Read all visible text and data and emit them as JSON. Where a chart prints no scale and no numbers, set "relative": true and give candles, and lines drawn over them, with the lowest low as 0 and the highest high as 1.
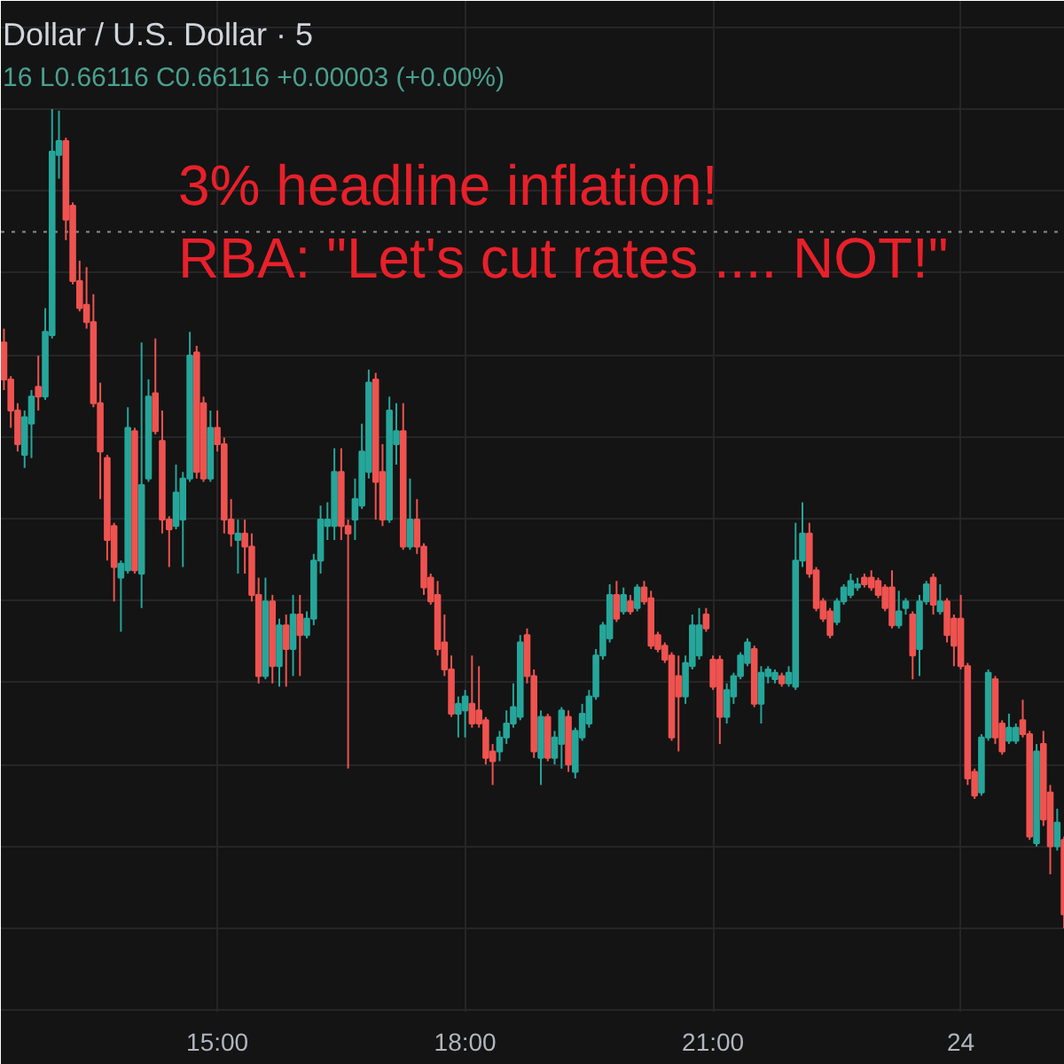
{
  "chart_data": {
    "type": "candlestick",
    "title": "Dollar / U.S. Dollar · 5",
    "subtitle": "16 L0.66116 C0.66116 +0.00003 (+0.00%)",
    "annotations": [
      "3% headline inflation!",
      "RBA: \"Let's cut rates .... NOT!\""
    ],
    "relative": true,
    "grid": true,
    "xlim": [
      12.38,
      25.26
    ],
    "xticks": [
      {
        "value": 15,
        "label": "15:00"
      },
      {
        "value": 18,
        "label": "18:00"
      },
      {
        "value": 21,
        "label": "21:00"
      },
      {
        "value": 24,
        "label": "24"
      }
    ],
    "ref_lines": [
      {
        "axis": "y",
        "value": 0.85,
        "line_style": "dotted",
        "color": "#8a8d94"
      }
    ],
    "x": [
      12.417,
      12.5,
      12.583,
      12.667,
      12.75,
      12.833,
      12.917,
      13,
      13.083,
      13.167,
      13.25,
      13.333,
      13.417,
      13.5,
      13.583,
      13.667,
      13.75,
      13.833,
      13.917,
      14,
      14.083,
      14.167,
      14.25,
      14.333,
      14.417,
      14.5,
      14.583,
      14.667,
      14.75,
      14.833,
      14.917,
      15,
      15.083,
      15.167,
      15.25,
      15.333,
      15.417,
      15.5,
      15.583,
      15.667,
      15.75,
      15.833,
      15.917,
      16,
      16.083,
      16.167,
      16.25,
      16.333,
      16.417,
      16.5,
      16.583,
      16.667,
      16.75,
      16.833,
      16.917,
      17,
      17.083,
      17.167,
      17.25,
      17.333,
      17.417,
      17.5,
      17.583,
      17.667,
      17.75,
      17.833,
      17.917,
      18,
      18.083,
      18.167,
      18.25,
      18.333,
      18.417,
      18.5,
      18.583,
      18.667,
      18.75,
      18.833,
      18.917,
      19,
      19.083,
      19.167,
      19.25,
      19.333,
      19.417,
      19.5,
      19.583,
      19.667,
      19.75,
      19.833,
      19.917,
      20,
      20.083,
      20.167,
      20.25,
      20.333,
      20.417,
      20.5,
      20.583,
      20.667,
      20.75,
      20.833,
      20.917,
      21,
      21.083,
      21.167,
      21.25,
      21.333,
      21.417,
      21.5,
      21.583,
      21.667,
      21.75,
      21.833,
      21.917,
      22,
      22.083,
      22.167,
      22.25,
      22.333,
      22.417,
      22.5,
      22.583,
      22.667,
      22.75,
      22.833,
      22.917,
      23,
      23.083,
      23.167,
      23.25,
      23.333,
      23.417,
      23.5,
      23.583,
      23.667,
      23.75,
      23.833,
      23.917,
      24,
      24.083,
      24.167,
      24.25,
      24.333,
      24.417,
      24.5,
      24.583,
      24.667,
      24.75,
      24.833,
      24.917,
      25,
      25.083,
      25.167,
      25.25
    ],
    "ohlc": [
      [
        0.715,
        0.732,
        0.657,
        0.67
      ],
      [
        0.67,
        0.674,
        0.611,
        0.632
      ],
      [
        0.632,
        0.641,
        0.582,
        0.591
      ],
      [
        0.578,
        0.632,
        0.562,
        0.624
      ],
      [
        0.616,
        0.657,
        0.574,
        0.649
      ],
      [
        0.661,
        0.699,
        0.632,
        0.649
      ],
      [
        0.649,
        0.757,
        0.645,
        0.728
      ],
      [
        0.724,
        1.0,
        0.72,
        0.948
      ],
      [
        0.944,
        0.998,
        0.915,
        0.961
      ],
      [
        0.961,
        0.965,
        0.84,
        0.865
      ],
      [
        0.882,
        0.886,
        0.786,
        0.79
      ],
      [
        0.79,
        0.815,
        0.753,
        0.757
      ],
      [
        0.761,
        0.807,
        0.732,
        0.74
      ],
      [
        0.74,
        0.774,
        0.636,
        0.641
      ],
      [
        0.641,
        0.666,
        0.524,
        0.582
      ],
      [
        0.574,
        0.578,
        0.449,
        0.474
      ],
      [
        0.491,
        0.495,
        0.399,
        0.441
      ],
      [
        0.428,
        0.449,
        0.362,
        0.445
      ],
      [
        0.437,
        0.636,
        0.433,
        0.611
      ],
      [
        0.607,
        0.611,
        0.433,
        0.437
      ],
      [
        0.433,
        0.715,
        0.391,
        0.541
      ],
      [
        0.549,
        0.67,
        0.545,
        0.649
      ],
      [
        0.653,
        0.72,
        0.603,
        0.607
      ],
      [
        0.595,
        0.632,
        0.482,
        0.499
      ],
      [
        0.499,
        0.503,
        0.441,
        0.487
      ],
      [
        0.491,
        0.566,
        0.487,
        0.532
      ],
      [
        0.499,
        0.557,
        0.441,
        0.549
      ],
      [
        0.549,
        0.728,
        0.545,
        0.699
      ],
      [
        0.703,
        0.711,
        0.549,
        0.557
      ],
      [
        0.641,
        0.649,
        0.545,
        0.549
      ],
      [
        0.549,
        0.632,
        0.545,
        0.611
      ],
      [
        0.611,
        0.632,
        0.582,
        0.591
      ],
      [
        0.591,
        0.599,
        0.482,
        0.499
      ],
      [
        0.499,
        0.524,
        0.466,
        0.482
      ],
      [
        0.474,
        0.499,
        0.433,
        0.482
      ],
      [
        0.482,
        0.499,
        0.433,
        0.466
      ],
      [
        0.466,
        0.482,
        0.399,
        0.407
      ],
      [
        0.407,
        0.428,
        0.299,
        0.308
      ],
      [
        0.308,
        0.428,
        0.304,
        0.399
      ],
      [
        0.399,
        0.407,
        0.299,
        0.32
      ],
      [
        0.32,
        0.378,
        0.295,
        0.37
      ],
      [
        0.37,
        0.383,
        0.295,
        0.341
      ],
      [
        0.341,
        0.407,
        0.308,
        0.383
      ],
      [
        0.383,
        0.407,
        0.308,
        0.358
      ],
      [
        0.358,
        0.387,
        0.354,
        0.378
      ],
      [
        0.378,
        0.457,
        0.37,
        0.449
      ],
      [
        0.449,
        0.516,
        0.433,
        0.499
      ],
      [
        0.491,
        0.52,
        0.474,
        0.499
      ],
      [
        0.491,
        0.586,
        0.474,
        0.557
      ],
      [
        0.557,
        0.586,
        0.474,
        0.491
      ],
      [
        0.491,
        0.499,
        0.195,
        0.482
      ],
      [
        0.499,
        0.549,
        0.474,
        0.524
      ],
      [
        0.516,
        0.616,
        0.512,
        0.582
      ],
      [
        0.557,
        0.682,
        0.549,
        0.666
      ],
      [
        0.67,
        0.678,
        0.499,
        0.545
      ],
      [
        0.557,
        0.591,
        0.491,
        0.499
      ],
      [
        0.499,
        0.649,
        0.495,
        0.632
      ],
      [
        0.591,
        0.641,
        0.566,
        0.607
      ],
      [
        0.607,
        0.641,
        0.462,
        0.466
      ],
      [
        0.466,
        0.549,
        0.462,
        0.499
      ],
      [
        0.499,
        0.524,
        0.457,
        0.466
      ],
      [
        0.466,
        0.47,
        0.407,
        0.416
      ],
      [
        0.428,
        0.433,
        0.395,
        0.399
      ],
      [
        0.407,
        0.424,
        0.333,
        0.341
      ],
      [
        0.349,
        0.383,
        0.308,
        0.316
      ],
      [
        0.316,
        0.333,
        0.258,
        0.262
      ],
      [
        0.262,
        0.283,
        0.233,
        0.274
      ],
      [
        0.266,
        0.291,
        0.233,
        0.283
      ],
      [
        0.274,
        0.333,
        0.245,
        0.25
      ],
      [
        0.266,
        0.32,
        0.245,
        0.25
      ],
      [
        0.254,
        0.258,
        0.2,
        0.208
      ],
      [
        0.216,
        0.225,
        0.175,
        0.204
      ],
      [
        0.216,
        0.241,
        0.204,
        0.233
      ],
      [
        0.233,
        0.266,
        0.225,
        0.25
      ],
      [
        0.25,
        0.299,
        0.245,
        0.27
      ],
      [
        0.258,
        0.358,
        0.254,
        0.349
      ],
      [
        0.358,
        0.366,
        0.299,
        0.308
      ],
      [
        0.308,
        0.316,
        0.208,
        0.216
      ],
      [
        0.208,
        0.266,
        0.175,
        0.258
      ],
      [
        0.258,
        0.262,
        0.204,
        0.208
      ],
      [
        0.208,
        0.241,
        0.2,
        0.233
      ],
      [
        0.225,
        0.27,
        0.195,
        0.266
      ],
      [
        0.258,
        0.266,
        0.191,
        0.2
      ],
      [
        0.191,
        0.245,
        0.183,
        0.241
      ],
      [
        0.233,
        0.274,
        0.229,
        0.262
      ],
      [
        0.25,
        0.291,
        0.245,
        0.283
      ],
      [
        0.283,
        0.341,
        0.279,
        0.333
      ],
      [
        0.333,
        0.374,
        0.328,
        0.37
      ],
      [
        0.354,
        0.42,
        0.349,
        0.407
      ],
      [
        0.407,
        0.424,
        0.374,
        0.378
      ],
      [
        0.387,
        0.416,
        0.383,
        0.407
      ],
      [
        0.399,
        0.407,
        0.383,
        0.387
      ],
      [
        0.391,
        0.42,
        0.387,
        0.416
      ],
      [
        0.416,
        0.424,
        0.395,
        0.399
      ],
      [
        0.403,
        0.412,
        0.341,
        0.345
      ],
      [
        0.358,
        0.362,
        0.337,
        0.341
      ],
      [
        0.345,
        0.349,
        0.324,
        0.328
      ],
      [
        0.333,
        0.337,
        0.229,
        0.233
      ],
      [
        0.308,
        0.333,
        0.216,
        0.283
      ],
      [
        0.283,
        0.333,
        0.274,
        0.324
      ],
      [
        0.32,
        0.383,
        0.316,
        0.37
      ],
      [
        0.333,
        0.391,
        0.328,
        0.37
      ],
      [
        0.383,
        0.391,
        0.362,
        0.366
      ],
      [
        0.328,
        0.333,
        0.291,
        0.295
      ],
      [
        0.328,
        0.333,
        0.225,
        0.258
      ],
      [
        0.258,
        0.299,
        0.25,
        0.291
      ],
      [
        0.283,
        0.312,
        0.274,
        0.308
      ],
      [
        0.308,
        0.337,
        0.304,
        0.333
      ],
      [
        0.324,
        0.354,
        0.32,
        0.349
      ],
      [
        0.341,
        0.345,
        0.27,
        0.274
      ],
      [
        0.274,
        0.32,
        0.25,
        0.312
      ],
      [
        0.308,
        0.32,
        0.299,
        0.316
      ],
      [
        0.304,
        0.316,
        0.299,
        0.312
      ],
      [
        0.308,
        0.312,
        0.295,
        0.299
      ],
      [
        0.299,
        0.32,
        0.295,
        0.312
      ],
      [
        0.295,
        0.495,
        0.291,
        0.449
      ],
      [
        0.449,
        0.52,
        0.441,
        0.482
      ],
      [
        0.482,
        0.495,
        0.428,
        0.433
      ],
      [
        0.437,
        0.441,
        0.387,
        0.391
      ],
      [
        0.399,
        0.403,
        0.374,
        0.378
      ],
      [
        0.387,
        0.391,
        0.354,
        0.358
      ],
      [
        0.374,
        0.403,
        0.37,
        0.399
      ],
      [
        0.399,
        0.42,
        0.395,
        0.416
      ],
      [
        0.407,
        0.433,
        0.403,
        0.424
      ],
      [
        0.416,
        0.428,
        0.412,
        0.42
      ],
      [
        0.428,
        0.433,
        0.416,
        0.42
      ],
      [
        0.428,
        0.437,
        0.412,
        0.416
      ],
      [
        0.424,
        0.428,
        0.403,
        0.407
      ],
      [
        0.416,
        0.42,
        0.387,
        0.391
      ],
      [
        0.416,
        0.437,
        0.366,
        0.37
      ],
      [
        0.37,
        0.412,
        0.366,
        0.387
      ],
      [
        0.391,
        0.403,
        0.383,
        0.399
      ],
      [
        0.383,
        0.387,
        0.304,
        0.333
      ],
      [
        0.341,
        0.407,
        0.308,
        0.399
      ],
      [
        0.399,
        0.424,
        0.395,
        0.42
      ],
      [
        0.428,
        0.433,
        0.383,
        0.395
      ],
      [
        0.387,
        0.42,
        0.383,
        0.399
      ],
      [
        0.399,
        0.403,
        0.349,
        0.358
      ],
      [
        0.378,
        0.383,
        0.32,
        0.345
      ],
      [
        0.378,
        0.407,
        0.316,
        0.32
      ],
      [
        0.32,
        0.324,
        0.175,
        0.183
      ],
      [
        0.191,
        0.195,
        0.158,
        0.162
      ],
      [
        0.166,
        0.237,
        0.162,
        0.233
      ],
      [
        0.233,
        0.316,
        0.229,
        0.312
      ],
      [
        0.304,
        0.308,
        0.225,
        0.233
      ],
      [
        0.25,
        0.254,
        0.212,
        0.216
      ],
      [
        0.229,
        0.262,
        0.225,
        0.245
      ],
      [
        0.229,
        0.25,
        0.225,
        0.245
      ],
      [
        0.254,
        0.279,
        0.233,
        0.237
      ],
      [
        0.237,
        0.241,
        0.108,
        0.112
      ],
      [
        0.104,
        0.225,
        0.1,
        0.216
      ],
      [
        0.225,
        0.241,
        0.125,
        0.133
      ],
      [
        0.166,
        0.175,
        0.066,
        0.1
      ],
      [
        0.1,
        0.146,
        0.095,
        0.129
      ],
      [
        0.108,
        0.112,
        0.0,
        0.017
      ]
    ],
    "colors": [
      "#ef5350",
      "#ef5350",
      "#ef5350",
      "#26a69a",
      "#26a69a",
      "#ef5350",
      "#26a69a",
      "#26a69a",
      "#26a69a",
      "#ef5350",
      "#ef5350",
      "#ef5350",
      "#ef5350",
      "#ef5350",
      "#ef5350",
      "#ef5350",
      "#ef5350",
      "#26a69a",
      "#26a69a",
      "#ef5350",
      "#26a69a",
      "#26a69a",
      "#ef5350",
      "#ef5350",
      "#ef5350",
      "#26a69a",
      "#26a69a",
      "#26a69a",
      "#ef5350",
      "#ef5350",
      "#26a69a",
      "#ef5350",
      "#ef5350",
      "#ef5350",
      "#26a69a",
      "#ef5350",
      "#ef5350",
      "#ef5350",
      "#26a69a",
      "#ef5350",
      "#26a69a",
      "#ef5350",
      "#26a69a",
      "#ef5350",
      "#26a69a",
      "#26a69a",
      "#26a69a",
      "#26a69a",
      "#26a69a",
      "#ef5350",
      "#ef5350",
      "#26a69a",
      "#26a69a",
      "#26a69a",
      "#ef5350",
      "#ef5350",
      "#26a69a",
      "#26a69a",
      "#ef5350",
      "#26a69a",
      "#ef5350",
      "#ef5350",
      "#ef5350",
      "#ef5350",
      "#ef5350",
      "#ef5350",
      "#26a69a",
      "#26a69a",
      "#ef5350",
      "#ef5350",
      "#ef5350",
      "#ef5350",
      "#26a69a",
      "#26a69a",
      "#26a69a",
      "#26a69a",
      "#ef5350",
      "#ef5350",
      "#26a69a",
      "#ef5350",
      "#26a69a",
      "#26a69a",
      "#ef5350",
      "#26a69a",
      "#26a69a",
      "#26a69a",
      "#26a69a",
      "#26a69a",
      "#26a69a",
      "#ef5350",
      "#26a69a",
      "#ef5350",
      "#26a69a",
      "#ef5350",
      "#ef5350",
      "#ef5350",
      "#ef5350",
      "#ef5350",
      "#ef5350",
      "#26a69a",
      "#26a69a",
      "#26a69a",
      "#ef5350",
      "#ef5350",
      "#ef5350",
      "#26a69a",
      "#26a69a",
      "#26a69a",
      "#26a69a",
      "#ef5350",
      "#26a69a",
      "#26a69a",
      "#26a69a",
      "#ef5350",
      "#26a69a",
      "#26a69a",
      "#26a69a",
      "#ef5350",
      "#ef5350",
      "#ef5350",
      "#ef5350",
      "#26a69a",
      "#26a69a",
      "#26a69a",
      "#26a69a",
      "#ef5350",
      "#ef5350",
      "#ef5350",
      "#ef5350",
      "#ef5350",
      "#26a69a",
      "#26a69a",
      "#ef5350",
      "#26a69a",
      "#26a69a",
      "#ef5350",
      "#26a69a",
      "#ef5350",
      "#ef5350",
      "#ef5350",
      "#ef5350",
      "#ef5350",
      "#26a69a",
      "#26a69a",
      "#ef5350",
      "#ef5350",
      "#26a69a",
      "#26a69a",
      "#ef5350",
      "#ef5350",
      "#26a69a",
      "#ef5350",
      "#ef5350",
      "#26a69a",
      "#ef5350"
    ]
  }
}
